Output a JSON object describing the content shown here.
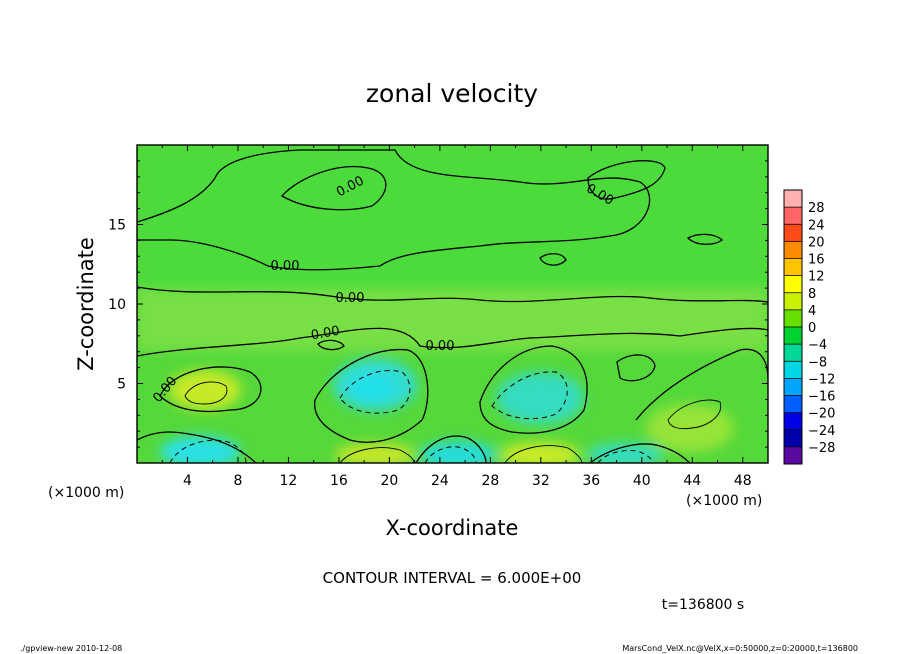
{
  "chart_data": {
    "type": "contour",
    "title": "zonal velocity",
    "xlabel": "X-coordinate",
    "ylabel": "Z-coordinate",
    "x_unit_note": "(×1000 m)",
    "y_unit_note": "(×1000 m)",
    "xlim": [
      0,
      50
    ],
    "ylim": [
      0,
      20
    ],
    "x_ticks": [
      "4",
      "8",
      "12",
      "16",
      "20",
      "24",
      "28",
      "32",
      "36",
      "40",
      "44",
      "48"
    ],
    "y_ticks": [
      "5",
      "10",
      "15"
    ],
    "contour_labels": [
      "0.00",
      "0.00",
      "0.00",
      "0.00",
      "0.00",
      "0.00",
      "0.00"
    ],
    "contour_interval_text": "CONTOUR INTERVAL = 6.000E+00",
    "time_text": "t=136800 s",
    "colorbar": {
      "levels": [
        "28",
        "24",
        "20",
        "16",
        "12",
        "8",
        "4",
        "0",
        "−4",
        "−8",
        "−12",
        "−16",
        "−20",
        "−24",
        "−28"
      ],
      "colors": [
        "#ffb0b0",
        "#ff6666",
        "#ff4a1a",
        "#ff8c00",
        "#ffc400",
        "#ffff00",
        "#c8f000",
        "#66e000",
        "#00d232",
        "#00d89a",
        "#00d6e4",
        "#00a6ff",
        "#0060ff",
        "#0000e6",
        "#0000a8",
        "#5a0aa0"
      ]
    },
    "grid": false
  },
  "footer": {
    "left": "./gpview-new  2010-12-08",
    "right": "MarsCond_VelX.nc@VelX,x=0:50000,z=0:20000,t=136800"
  }
}
